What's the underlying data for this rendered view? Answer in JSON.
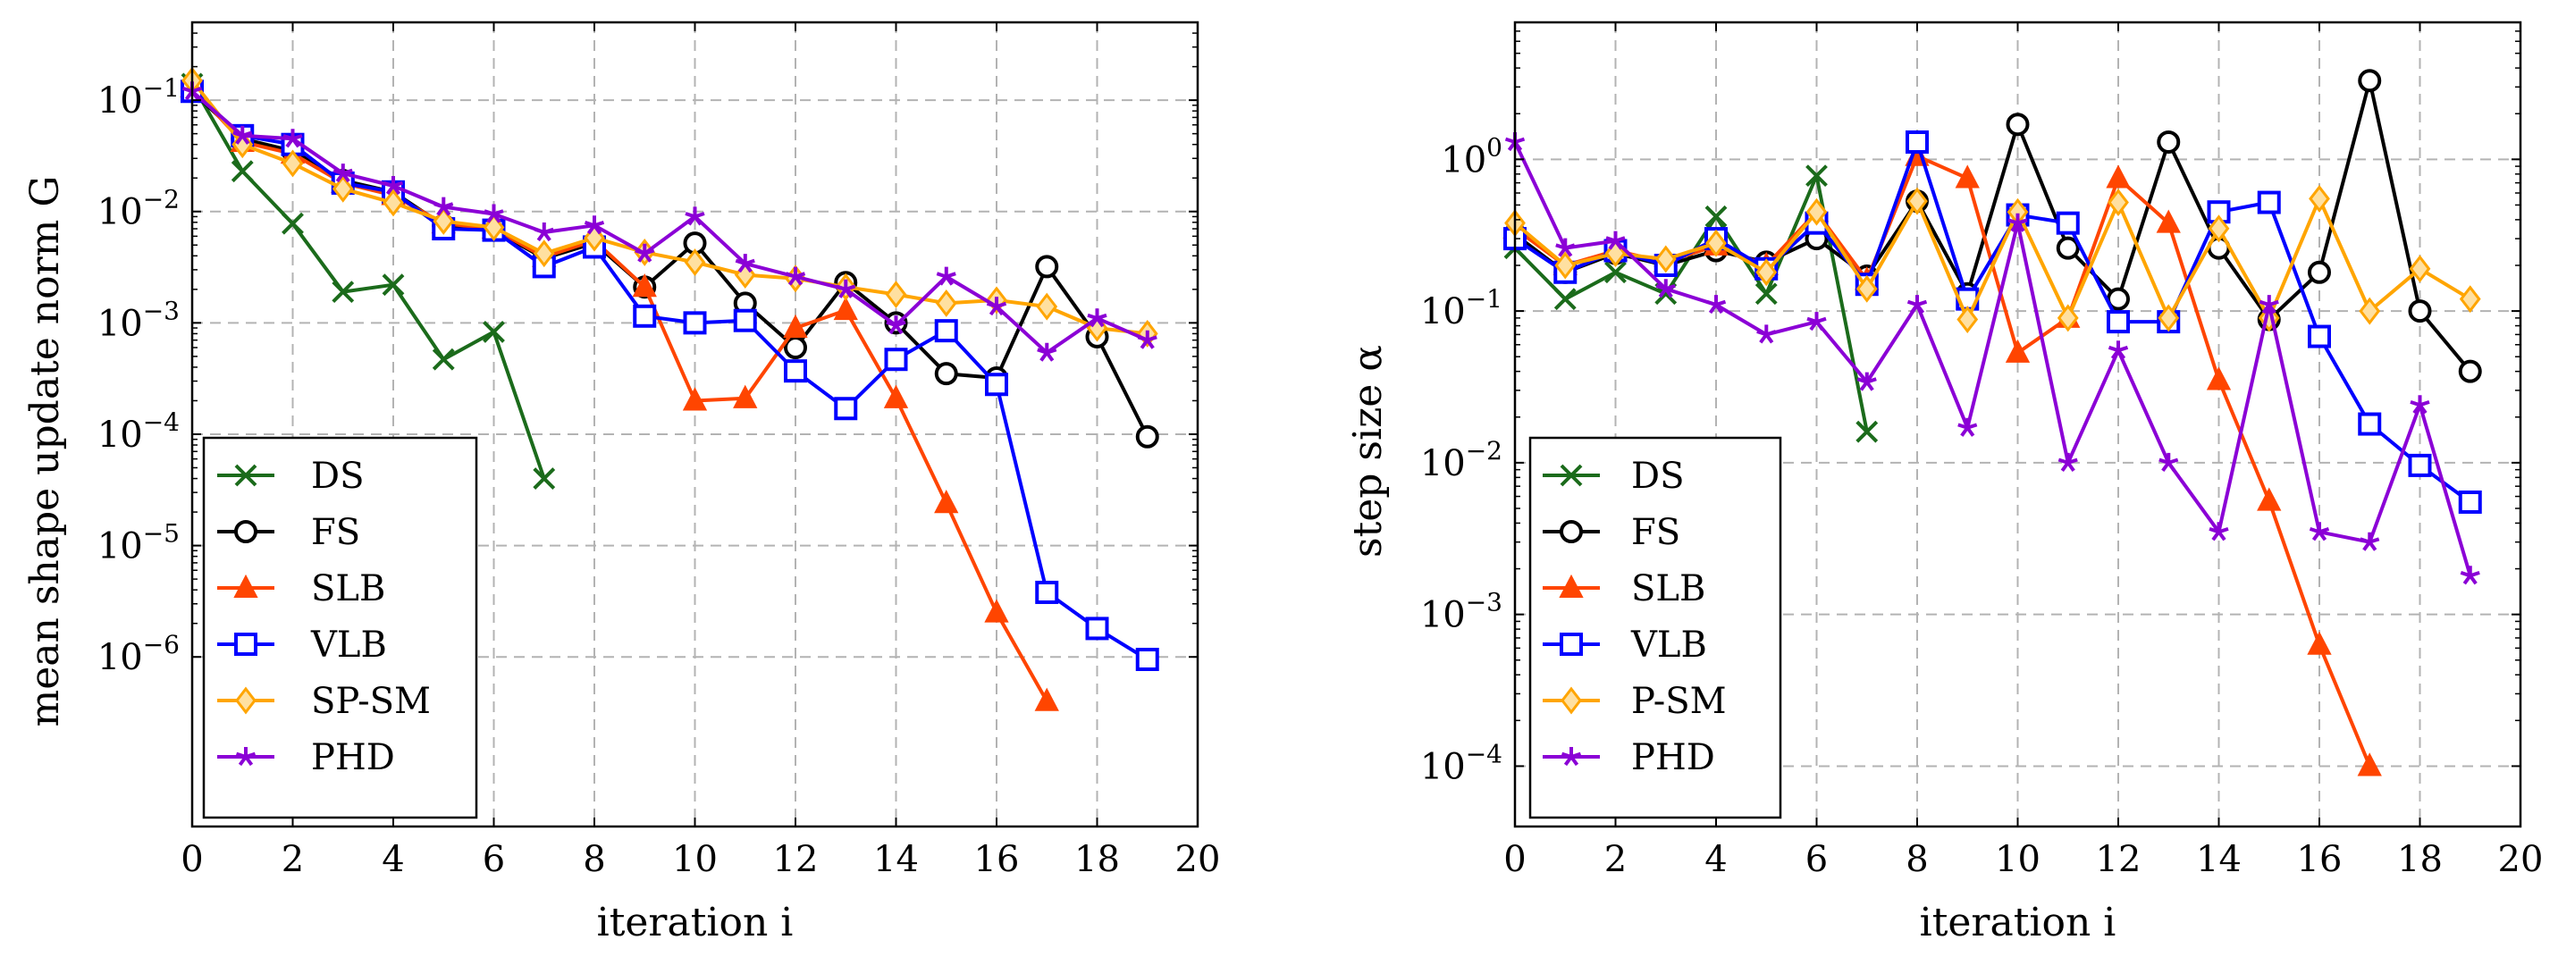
{
  "chart_data": [
    {
      "type": "line",
      "yscale": "log",
      "xlabel": "iteration i",
      "ylabel": "mean shape update norm G",
      "xlim": [
        0,
        20
      ],
      "ylim": [
        3e-08,
        0.5
      ],
      "grid": true,
      "legend_position": "bottom-left",
      "xticks": [
        0,
        2,
        4,
        6,
        8,
        10,
        12,
        14,
        16,
        18,
        20
      ],
      "xtick_labels": [
        "0",
        "2",
        "4",
        "6",
        "8",
        "10",
        "12",
        "14",
        "16",
        "18",
        "20"
      ],
      "yticks": [
        0.1,
        0.01,
        0.001,
        0.0001,
        1e-05,
        1e-06
      ],
      "ytick_labels": [
        {
          "base": "10",
          "exp": "−1"
        },
        {
          "base": "10",
          "exp": "−2"
        },
        {
          "base": "10",
          "exp": "−3"
        },
        {
          "base": "10",
          "exp": "−4"
        },
        {
          "base": "10",
          "exp": "−5"
        },
        {
          "base": "10",
          "exp": "−6"
        }
      ],
      "series": [
        {
          "name": "DS",
          "color": "#1b6b1b",
          "marker": "x",
          "x": [
            0,
            1,
            2,
            3,
            4,
            5,
            6,
            7
          ],
          "y": [
            0.14,
            0.023,
            0.0078,
            0.0019,
            0.0022,
            0.00047,
            0.00083,
            4e-05
          ]
        },
        {
          "name": "FS",
          "color": "#000000",
          "marker": "circle",
          "x": [
            0,
            1,
            2,
            3,
            4,
            5,
            6,
            7,
            8,
            9,
            10,
            11,
            12,
            13,
            14,
            15,
            16,
            17,
            18,
            19
          ],
          "y": [
            0.12,
            0.045,
            0.035,
            0.019,
            0.015,
            0.0075,
            0.0068,
            0.0038,
            0.0052,
            0.0021,
            0.0052,
            0.0015,
            0.0006,
            0.0023,
            0.001,
            0.00035,
            0.00032,
            0.0032,
            0.00075,
            9.5e-05
          ]
        },
        {
          "name": "SLB",
          "color": "#ff4500",
          "marker": "triangle",
          "x": [
            0,
            1,
            2,
            3,
            4,
            5,
            6,
            7,
            8,
            9,
            10,
            11,
            12,
            13,
            14,
            15,
            16,
            17
          ],
          "y": [
            0.13,
            0.042,
            0.033,
            0.018,
            0.014,
            0.0078,
            0.007,
            0.0039,
            0.0055,
            0.0021,
            0.0002,
            0.00021,
            0.0009,
            0.0013,
            0.00021,
            2.4e-05,
            2.5e-06,
            4e-07
          ]
        },
        {
          "name": "VLB",
          "color": "#0000ff",
          "marker": "square",
          "x": [
            0,
            1,
            2,
            3,
            4,
            5,
            6,
            7,
            8,
            9,
            10,
            11,
            12,
            13,
            14,
            15,
            16,
            17,
            18,
            19
          ],
          "y": [
            0.12,
            0.048,
            0.04,
            0.018,
            0.015,
            0.007,
            0.0068,
            0.0032,
            0.0048,
            0.00115,
            0.001,
            0.00105,
            0.00037,
            0.00017,
            0.00047,
            0.00085,
            0.00028,
            3.8e-06,
            1.8e-06,
            9.5e-07
          ]
        },
        {
          "name": "SP-SM",
          "color": "#ffa500",
          "marker": "diamond",
          "x": [
            0,
            1,
            2,
            3,
            4,
            5,
            6,
            7,
            8,
            9,
            10,
            11,
            12,
            13,
            14,
            15,
            16,
            17,
            18,
            19
          ],
          "y": [
            0.15,
            0.04,
            0.027,
            0.016,
            0.012,
            0.0082,
            0.0072,
            0.0042,
            0.0058,
            0.0043,
            0.0035,
            0.0027,
            0.0025,
            0.0021,
            0.0018,
            0.0015,
            0.0016,
            0.0014,
            0.0009,
            0.0008
          ]
        },
        {
          "name": "PHD",
          "color": "#8b00d6",
          "marker": "star",
          "x": [
            0,
            1,
            2,
            3,
            4,
            5,
            6,
            7,
            8,
            9,
            10,
            11,
            12,
            13,
            14,
            15,
            16,
            17,
            18,
            19
          ],
          "y": [
            0.12,
            0.048,
            0.045,
            0.022,
            0.017,
            0.011,
            0.0095,
            0.0065,
            0.0075,
            0.0042,
            0.009,
            0.0034,
            0.0026,
            0.002,
            0.00095,
            0.0026,
            0.0014,
            0.00054,
            0.0011,
            0.0007
          ]
        }
      ]
    },
    {
      "type": "line",
      "yscale": "log",
      "xlabel": "iteration i",
      "ylabel": "step size α",
      "xlim": [
        0,
        20
      ],
      "ylim": [
        4e-05,
        8
      ],
      "grid": true,
      "legend_position": "bottom-left",
      "xticks": [
        0,
        2,
        4,
        6,
        8,
        10,
        12,
        14,
        16,
        18,
        20
      ],
      "xtick_labels": [
        "0",
        "2",
        "4",
        "6",
        "8",
        "10",
        "12",
        "14",
        "16",
        "18",
        "20"
      ],
      "yticks": [
        1,
        0.1,
        0.01,
        0.001,
        0.0001
      ],
      "ytick_labels": [
        {
          "base": "10",
          "exp": "0"
        },
        {
          "base": "10",
          "exp": "−1"
        },
        {
          "base": "10",
          "exp": "−2"
        },
        {
          "base": "10",
          "exp": "−3"
        },
        {
          "base": "10",
          "exp": "−4"
        }
      ],
      "series": [
        {
          "name": "DS",
          "color": "#1b6b1b",
          "marker": "x",
          "x": [
            0,
            1,
            2,
            3,
            4,
            5,
            6,
            7
          ],
          "y": [
            0.26,
            0.12,
            0.18,
            0.13,
            0.42,
            0.13,
            0.78,
            0.016
          ]
        },
        {
          "name": "FS",
          "color": "#000000",
          "marker": "circle",
          "x": [
            0,
            1,
            2,
            3,
            4,
            5,
            6,
            7,
            8,
            9,
            10,
            11,
            12,
            13,
            14,
            15,
            16,
            17,
            18,
            19
          ],
          "y": [
            0.32,
            0.18,
            0.24,
            0.2,
            0.25,
            0.21,
            0.3,
            0.17,
            0.53,
            0.13,
            1.7,
            0.26,
            0.12,
            1.3,
            0.26,
            0.088,
            0.18,
            3.3,
            0.1,
            0.04
          ]
        },
        {
          "name": "SLB",
          "color": "#ff4500",
          "marker": "triangle",
          "x": [
            0,
            1,
            2,
            3,
            4,
            5,
            6,
            7,
            8,
            9,
            10,
            11,
            12,
            13,
            14,
            15,
            16,
            17
          ],
          "y": [
            0.35,
            0.2,
            0.25,
            0.21,
            0.27,
            0.2,
            0.45,
            0.16,
            1.05,
            0.75,
            0.053,
            0.09,
            0.75,
            0.38,
            0.035,
            0.0056,
            0.00063,
            0.0001
          ]
        },
        {
          "name": "VLB",
          "color": "#0000ff",
          "marker": "square",
          "x": [
            0,
            1,
            2,
            3,
            4,
            5,
            6,
            7,
            8,
            9,
            10,
            11,
            12,
            13,
            14,
            15,
            16,
            17,
            18,
            19
          ],
          "y": [
            0.3,
            0.18,
            0.25,
            0.2,
            0.3,
            0.19,
            0.38,
            0.15,
            1.3,
            0.12,
            0.43,
            0.38,
            0.085,
            0.085,
            0.45,
            0.52,
            0.068,
            0.018,
            0.0096,
            0.0055
          ]
        },
        {
          "name": "P-SM",
          "color": "#ffa500",
          "marker": "diamond",
          "x": [
            0,
            1,
            2,
            3,
            4,
            5,
            6,
            7,
            8,
            9,
            10,
            11,
            12,
            13,
            14,
            15,
            16,
            17,
            18,
            19
          ],
          "y": [
            0.38,
            0.2,
            0.24,
            0.22,
            0.28,
            0.18,
            0.45,
            0.14,
            0.53,
            0.088,
            0.45,
            0.09,
            0.52,
            0.09,
            0.35,
            0.09,
            0.55,
            0.1,
            0.19,
            0.12
          ]
        },
        {
          "name": "PHD",
          "color": "#8b00d6",
          "marker": "star",
          "x": [
            0,
            1,
            2,
            3,
            4,
            5,
            6,
            7,
            8,
            9,
            10,
            11,
            12,
            13,
            14,
            15,
            16,
            17,
            18,
            19
          ],
          "y": [
            1.3,
            0.26,
            0.29,
            0.14,
            0.11,
            0.07,
            0.085,
            0.034,
            0.11,
            0.017,
            0.38,
            0.01,
            0.055,
            0.01,
            0.0035,
            0.11,
            0.0035,
            0.003,
            0.024,
            0.0018
          ]
        }
      ]
    }
  ]
}
